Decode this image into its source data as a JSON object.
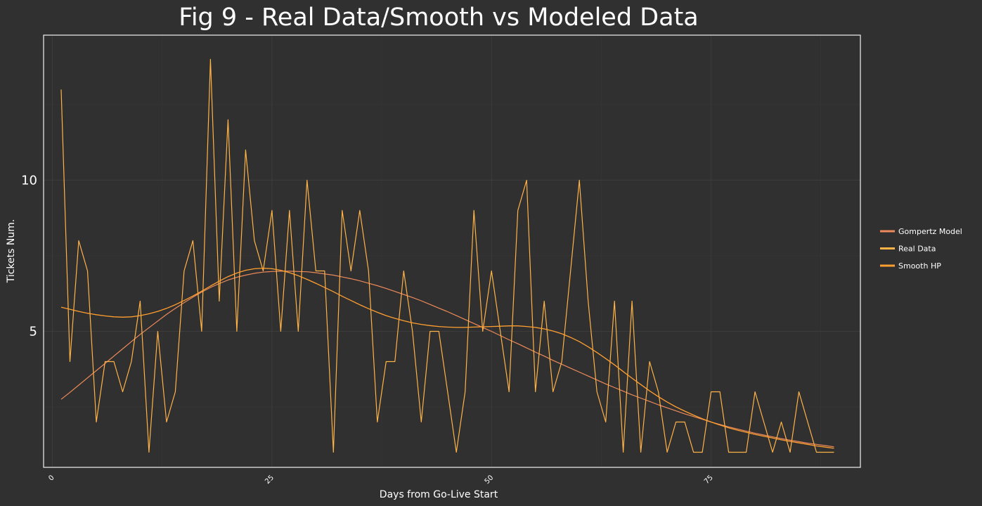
{
  "chart_data": {
    "type": "line",
    "title": "Fig 9 - Real Data/Smooth vs Modeled Data",
    "xlabel": "Days from Go-Live Start",
    "ylabel": "Tickets Num.",
    "xlim": [
      -1,
      92
    ],
    "ylim": [
      0.5,
      14.8
    ],
    "x_ticks": [
      0,
      25,
      50,
      75
    ],
    "y_ticks": [
      5,
      10
    ],
    "grid": true,
    "legend_position": "right",
    "x": [
      1,
      2,
      3,
      4,
      5,
      6,
      7,
      8,
      9,
      10,
      11,
      12,
      13,
      14,
      15,
      16,
      17,
      18,
      19,
      20,
      21,
      22,
      23,
      24,
      25,
      26,
      27,
      28,
      29,
      30,
      31,
      32,
      33,
      34,
      35,
      36,
      37,
      38,
      39,
      40,
      41,
      42,
      43,
      44,
      45,
      46,
      47,
      48,
      49,
      50,
      51,
      52,
      53,
      54,
      55,
      56,
      57,
      58,
      59,
      60,
      61,
      62,
      63,
      64,
      65,
      66,
      67,
      68,
      69,
      70,
      71,
      72,
      73,
      74,
      75,
      76,
      77,
      78,
      79,
      80,
      81,
      82,
      83,
      84,
      85,
      86,
      87,
      88,
      89
    ],
    "series": [
      {
        "name": "Gompertz Model",
        "color": "#ee8a5a",
        "values": [
          2.75,
          2.98,
          3.22,
          3.46,
          3.7,
          3.94,
          4.18,
          4.42,
          4.66,
          4.9,
          5.12,
          5.34,
          5.56,
          5.76,
          5.95,
          6.13,
          6.3,
          6.45,
          6.58,
          6.7,
          6.79,
          6.86,
          6.92,
          6.96,
          6.98,
          6.99,
          6.99,
          6.98,
          6.97,
          6.94,
          6.9,
          6.86,
          6.8,
          6.74,
          6.67,
          6.59,
          6.51,
          6.42,
          6.32,
          6.22,
          6.12,
          6.01,
          5.89,
          5.77,
          5.65,
          5.52,
          5.39,
          5.26,
          5.13,
          5.0,
          4.86,
          4.72,
          4.59,
          4.45,
          4.31,
          4.18,
          4.04,
          3.91,
          3.78,
          3.65,
          3.52,
          3.39,
          3.26,
          3.14,
          3.02,
          2.9,
          2.79,
          2.68,
          2.57,
          2.47,
          2.37,
          2.27,
          2.18,
          2.09,
          2.0,
          1.92,
          1.84,
          1.77,
          1.7,
          1.63,
          1.57,
          1.51,
          1.45,
          1.4,
          1.35,
          1.3,
          1.26,
          1.22,
          1.18
        ]
      },
      {
        "name": "Real Data",
        "color": "#ffb347",
        "values": [
          13,
          4,
          8,
          7,
          2,
          4,
          4,
          3,
          4,
          6,
          1,
          5,
          2,
          3,
          7,
          8,
          5,
          14,
          6,
          12,
          5,
          11,
          8,
          7,
          9,
          5,
          9,
          5,
          10,
          7,
          7,
          1,
          9,
          7,
          9,
          7,
          2,
          4,
          4,
          7,
          5,
          2,
          5,
          5,
          3,
          1,
          3,
          9,
          5,
          7,
          5,
          3,
          9,
          10,
          3,
          6,
          3,
          4,
          7,
          10,
          6,
          3,
          2,
          6,
          1,
          6,
          1,
          4,
          3,
          1,
          2,
          2,
          1,
          1,
          3,
          3,
          1,
          1,
          1,
          3,
          2,
          1,
          2,
          1,
          3,
          2,
          1,
          1,
          1
        ]
      },
      {
        "name": "Smooth HP",
        "color": "#ff9f30",
        "values": [
          5.8,
          5.73,
          5.66,
          5.6,
          5.55,
          5.51,
          5.48,
          5.47,
          5.48,
          5.52,
          5.58,
          5.66,
          5.76,
          5.88,
          6.02,
          6.17,
          6.33,
          6.5,
          6.66,
          6.81,
          6.93,
          7.02,
          7.07,
          7.09,
          7.07,
          7.02,
          6.94,
          6.84,
          6.72,
          6.59,
          6.45,
          6.31,
          6.16,
          6.02,
          5.88,
          5.75,
          5.63,
          5.52,
          5.43,
          5.35,
          5.28,
          5.23,
          5.19,
          5.16,
          5.14,
          5.13,
          5.13,
          5.14,
          5.15,
          5.16,
          5.17,
          5.18,
          5.18,
          5.16,
          5.13,
          5.08,
          5.01,
          4.92,
          4.8,
          4.66,
          4.49,
          4.3,
          4.1,
          3.89,
          3.67,
          3.45,
          3.24,
          3.03,
          2.84,
          2.66,
          2.5,
          2.36,
          2.23,
          2.11,
          2.0,
          1.9,
          1.81,
          1.73,
          1.66,
          1.59,
          1.53,
          1.47,
          1.41,
          1.36,
          1.31,
          1.26,
          1.21,
          1.17,
          1.13
        ]
      }
    ]
  }
}
